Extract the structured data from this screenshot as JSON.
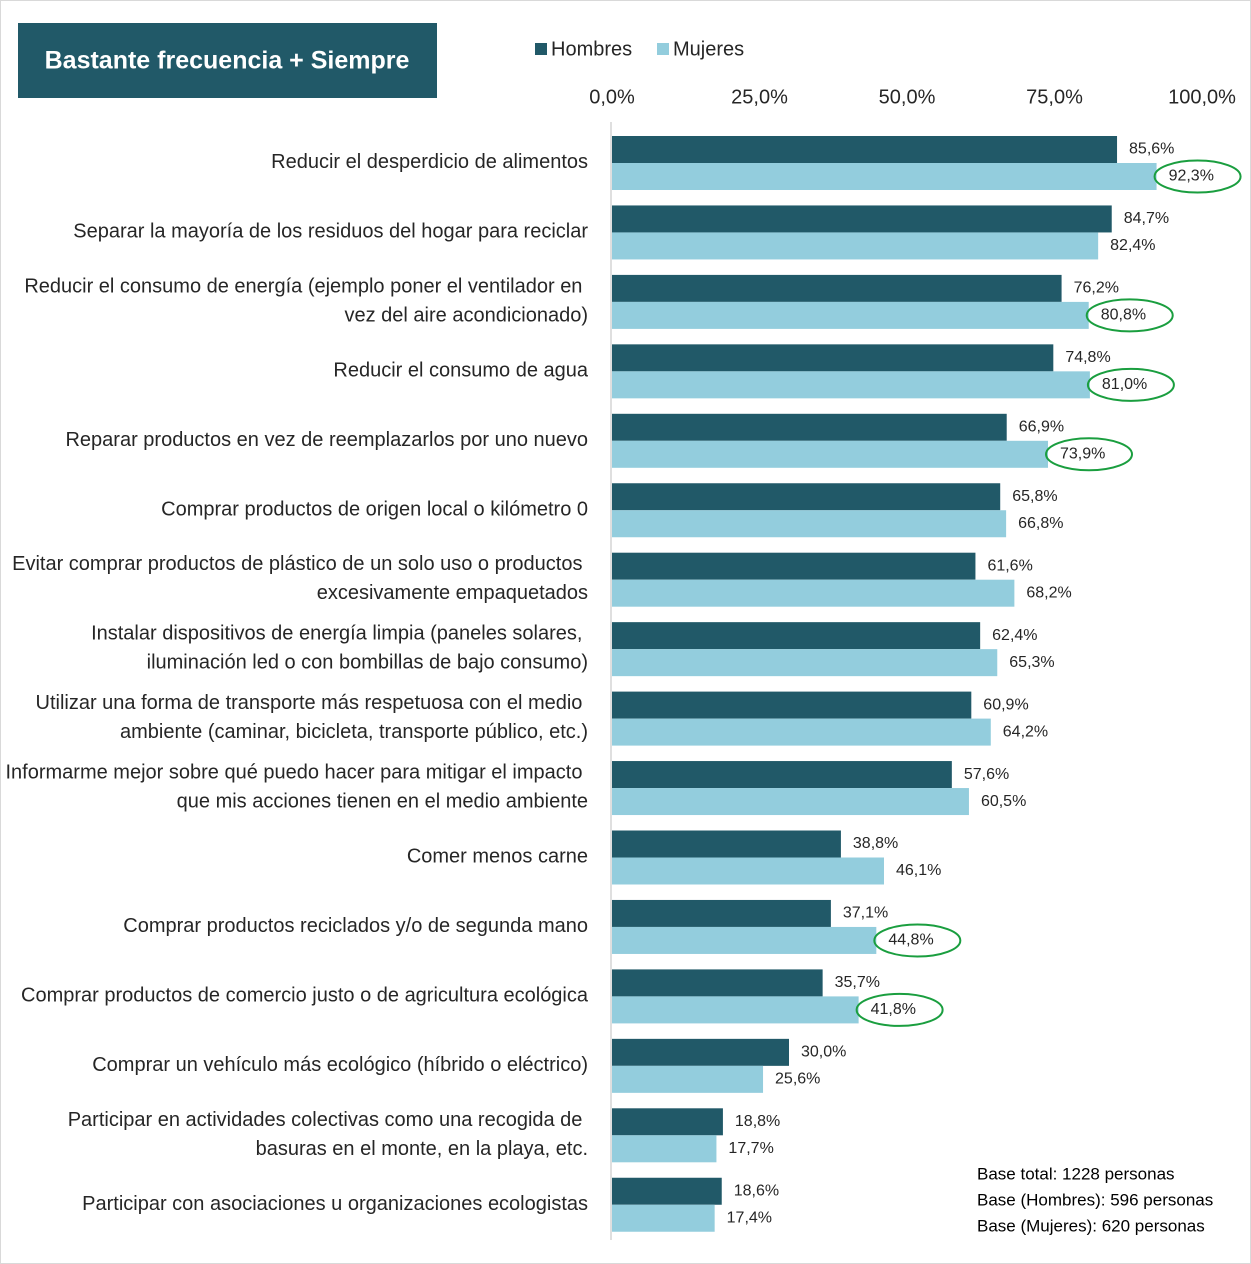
{
  "chart_data": {
    "type": "bar",
    "orientation": "horizontal",
    "title": "Bastante frecuencia + Siempre",
    "categories": [
      "Reducir el desperdicio de alimentos",
      "Separar la mayoría de los residuos del hogar para reciclar",
      "Reducir el consumo de energía (ejemplo poner el ventilador en vez del aire acondicionado)",
      "Reducir el consumo de agua",
      "Reparar productos en vez de reemplazarlos por uno nuevo",
      "Comprar productos de origen local o kilómetro 0",
      "Evitar comprar productos de plástico de un solo uso o productos excesivamente empaquetados",
      "Instalar dispositivos de energía limpia (paneles solares, iluminación led o con bombillas de bajo consumo)",
      "Utilizar una forma de transporte más respetuosa con el medio ambiente (caminar, bicicleta, transporte público, etc.)",
      "Informarme mejor sobre qué puedo hacer para mitigar el impacto que mis acciones tienen en el medio ambiente",
      "Comer menos carne",
      "Comprar productos reciclados y/o de segunda mano",
      "Comprar productos de comercio justo o de agricultura ecológica",
      "Comprar un vehículo más ecológico (híbrido o eléctrico)",
      "Participar en actividades colectivas como una recogida de basuras en el monte, en la playa, etc.",
      "Participar con asociaciones u organizaciones ecologistas"
    ],
    "series": [
      {
        "name": "Hombres",
        "color": "#215968",
        "values": [
          85.6,
          84.7,
          76.2,
          74.8,
          66.9,
          65.8,
          61.6,
          62.4,
          60.9,
          57.6,
          38.8,
          37.1,
          35.7,
          30.0,
          18.8,
          18.6
        ],
        "value_labels": [
          "85,6%",
          "84,7%",
          "76,2%",
          "74,8%",
          "66,9%",
          "65,8%",
          "61,6%",
          "62,4%",
          "60,9%",
          "57,6%",
          "38,8%",
          "37,1%",
          "35,7%",
          "30,0%",
          "18,8%",
          "18,6%"
        ]
      },
      {
        "name": "Mujeres",
        "color": "#93cddd",
        "values": [
          92.3,
          82.4,
          80.8,
          81.0,
          73.9,
          66.8,
          68.2,
          65.3,
          64.2,
          60.5,
          46.1,
          44.8,
          41.8,
          25.6,
          17.7,
          17.4
        ],
        "value_labels": [
          "92,3%",
          "82,4%",
          "80,8%",
          "81,0%",
          "73,9%",
          "66,8%",
          "68,2%",
          "65,3%",
          "64,2%",
          "60,5%",
          "46,1%",
          "44,8%",
          "41,8%",
          "25,6%",
          "17,7%",
          "17,4%"
        ],
        "circled": [
          0,
          2,
          3,
          4,
          11,
          12
        ],
        "circle_color": "#1a9e3f"
      }
    ],
    "xlim": [
      0,
      100
    ],
    "xticks": [
      {
        "value": 0,
        "label": "0,0%"
      },
      {
        "value": 25,
        "label": "25,0%"
      },
      {
        "value": 50,
        "label": "50,0%"
      },
      {
        "value": 75,
        "label": "75,0%"
      },
      {
        "value": 100,
        "label": "100,0%"
      }
    ],
    "notes": [
      "Base total: 1228 personas",
      "Base (Hombres): 596 personas",
      "Base (Mujeres): 620 personas"
    ]
  }
}
